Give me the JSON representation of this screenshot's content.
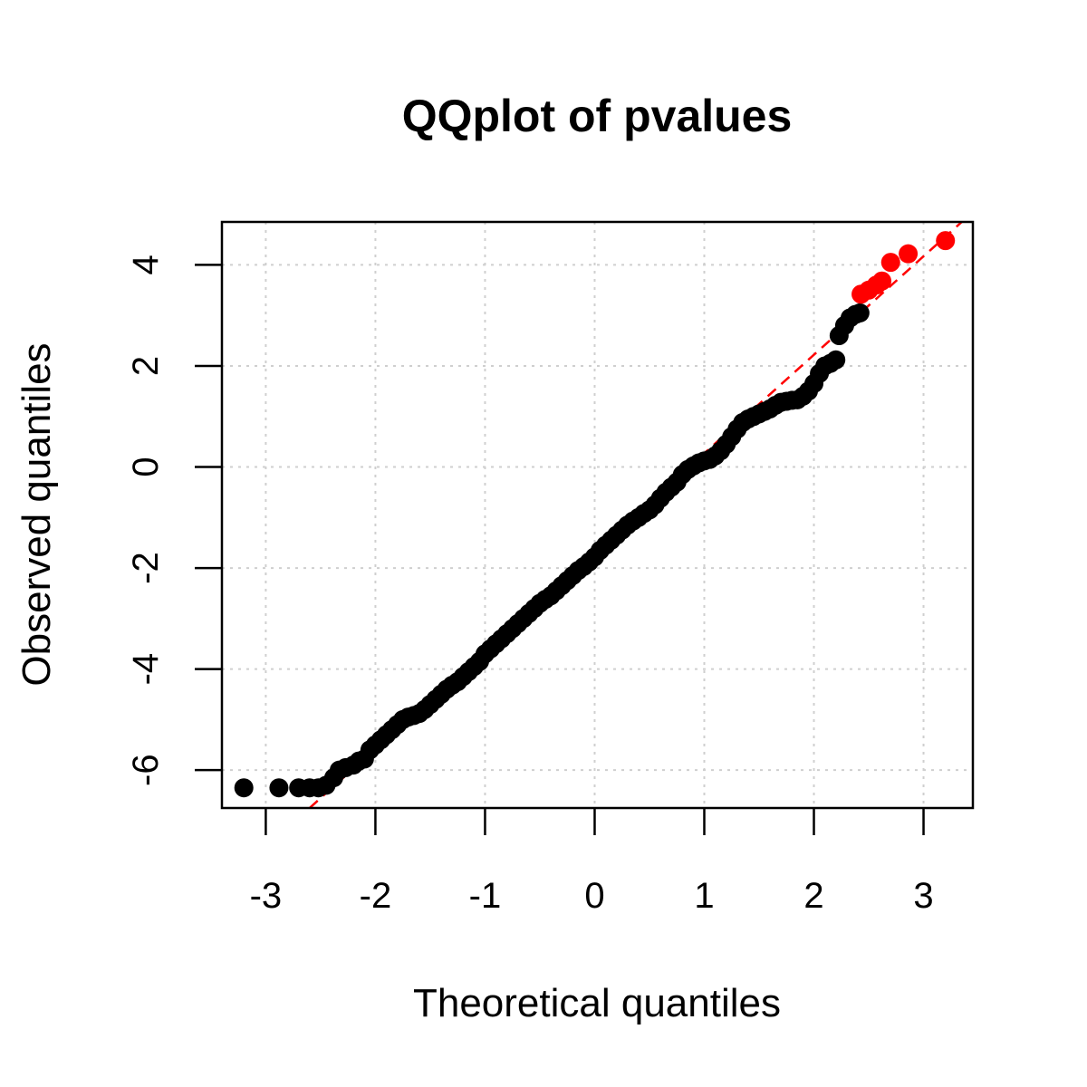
{
  "chart_data": {
    "type": "scatter",
    "title": "QQplot of pvalues",
    "xlabel": "Theoretical quantiles",
    "ylabel": "Observed quantiles",
    "xlim": [
      -3.4,
      3.45
    ],
    "ylim": [
      -6.75,
      4.85
    ],
    "xticks": [
      -3,
      -2,
      -1,
      0,
      1,
      2,
      3
    ],
    "yticks": [
      -6,
      -4,
      -2,
      0,
      2,
      4
    ],
    "grid": true,
    "reference_line": {
      "intercept": -1.68,
      "slope": 1.95,
      "style": "dashed",
      "color": "#FF0000"
    },
    "colors": {
      "normal": "#000000",
      "highlight": "#FF0000"
    },
    "series": [
      {
        "color": "#000000",
        "points": [
          [
            -3.2,
            -6.35
          ],
          [
            -2.88,
            -6.35
          ],
          [
            -2.7,
            -6.35
          ],
          [
            -2.6,
            -6.35
          ],
          [
            -2.52,
            -6.35
          ],
          [
            -2.45,
            -6.3
          ],
          [
            -2.38,
            -6.15
          ],
          [
            -2.33,
            -6.0
          ],
          [
            -2.27,
            -5.95
          ],
          [
            -2.2,
            -5.9
          ],
          [
            -2.15,
            -5.82
          ],
          [
            -2.1,
            -5.78
          ],
          [
            -2.05,
            -5.6
          ],
          [
            -2.0,
            -5.5
          ],
          [
            -1.95,
            -5.4
          ],
          [
            -1.9,
            -5.3
          ],
          [
            -1.85,
            -5.2
          ],
          [
            -1.8,
            -5.1
          ],
          [
            -1.75,
            -5.0
          ],
          [
            -1.7,
            -4.95
          ],
          [
            -1.65,
            -4.92
          ],
          [
            -1.6,
            -4.88
          ],
          [
            -1.55,
            -4.8
          ],
          [
            -1.5,
            -4.7
          ],
          [
            -1.45,
            -4.6
          ],
          [
            -1.4,
            -4.5
          ],
          [
            -1.35,
            -4.4
          ],
          [
            -1.3,
            -4.32
          ],
          [
            -1.25,
            -4.25
          ],
          [
            -1.2,
            -4.15
          ],
          [
            -1.15,
            -4.05
          ],
          [
            -1.1,
            -3.95
          ],
          [
            -1.05,
            -3.85
          ],
          [
            -1.0,
            -3.7
          ],
          [
            -0.95,
            -3.6
          ],
          [
            -0.9,
            -3.5
          ],
          [
            -0.85,
            -3.4
          ],
          [
            -0.8,
            -3.3
          ],
          [
            -0.75,
            -3.2
          ],
          [
            -0.7,
            -3.1
          ],
          [
            -0.65,
            -3.0
          ],
          [
            -0.6,
            -2.9
          ],
          [
            -0.55,
            -2.8
          ],
          [
            -0.5,
            -2.7
          ],
          [
            -0.45,
            -2.62
          ],
          [
            -0.4,
            -2.55
          ],
          [
            -0.35,
            -2.45
          ],
          [
            -0.3,
            -2.35
          ],
          [
            -0.25,
            -2.25
          ],
          [
            -0.2,
            -2.15
          ],
          [
            -0.15,
            -2.05
          ],
          [
            -0.1,
            -1.97
          ],
          [
            -0.05,
            -1.88
          ],
          [
            0.0,
            -1.78
          ],
          [
            0.05,
            -1.65
          ],
          [
            0.1,
            -1.55
          ],
          [
            0.15,
            -1.45
          ],
          [
            0.2,
            -1.35
          ],
          [
            0.25,
            -1.25
          ],
          [
            0.3,
            -1.15
          ],
          [
            0.35,
            -1.07
          ],
          [
            0.4,
            -1.0
          ],
          [
            0.45,
            -0.92
          ],
          [
            0.5,
            -0.85
          ],
          [
            0.55,
            -0.75
          ],
          [
            0.6,
            -0.62
          ],
          [
            0.65,
            -0.5
          ],
          [
            0.7,
            -0.4
          ],
          [
            0.75,
            -0.3
          ],
          [
            0.8,
            -0.15
          ],
          [
            0.85,
            -0.05
          ],
          [
            0.9,
            0.02
          ],
          [
            0.95,
            0.08
          ],
          [
            1.0,
            0.12
          ],
          [
            1.05,
            0.15
          ],
          [
            1.1,
            0.22
          ],
          [
            1.15,
            0.32
          ],
          [
            1.2,
            0.45
          ],
          [
            1.25,
            0.6
          ],
          [
            1.3,
            0.75
          ],
          [
            1.35,
            0.88
          ],
          [
            1.4,
            0.95
          ],
          [
            1.45,
            1.0
          ],
          [
            1.5,
            1.05
          ],
          [
            1.55,
            1.1
          ],
          [
            1.6,
            1.15
          ],
          [
            1.65,
            1.22
          ],
          [
            1.7,
            1.28
          ],
          [
            1.75,
            1.3
          ],
          [
            1.8,
            1.32
          ],
          [
            1.85,
            1.33
          ],
          [
            1.9,
            1.4
          ],
          [
            1.95,
            1.5
          ],
          [
            2.0,
            1.65
          ],
          [
            2.05,
            1.85
          ],
          [
            2.1,
            2.0
          ],
          [
            2.15,
            2.05
          ],
          [
            2.2,
            2.12
          ],
          [
            2.23,
            2.6
          ],
          [
            2.28,
            2.8
          ],
          [
            2.33,
            2.95
          ],
          [
            2.38,
            3.02
          ],
          [
            2.42,
            3.05
          ]
        ]
      },
      {
        "color": "#FF0000",
        "points": [
          [
            2.43,
            3.42
          ],
          [
            2.5,
            3.5
          ],
          [
            2.57,
            3.6
          ],
          [
            2.62,
            3.68
          ],
          [
            2.7,
            4.05
          ],
          [
            2.86,
            4.22
          ],
          [
            3.2,
            4.48
          ]
        ]
      }
    ]
  }
}
